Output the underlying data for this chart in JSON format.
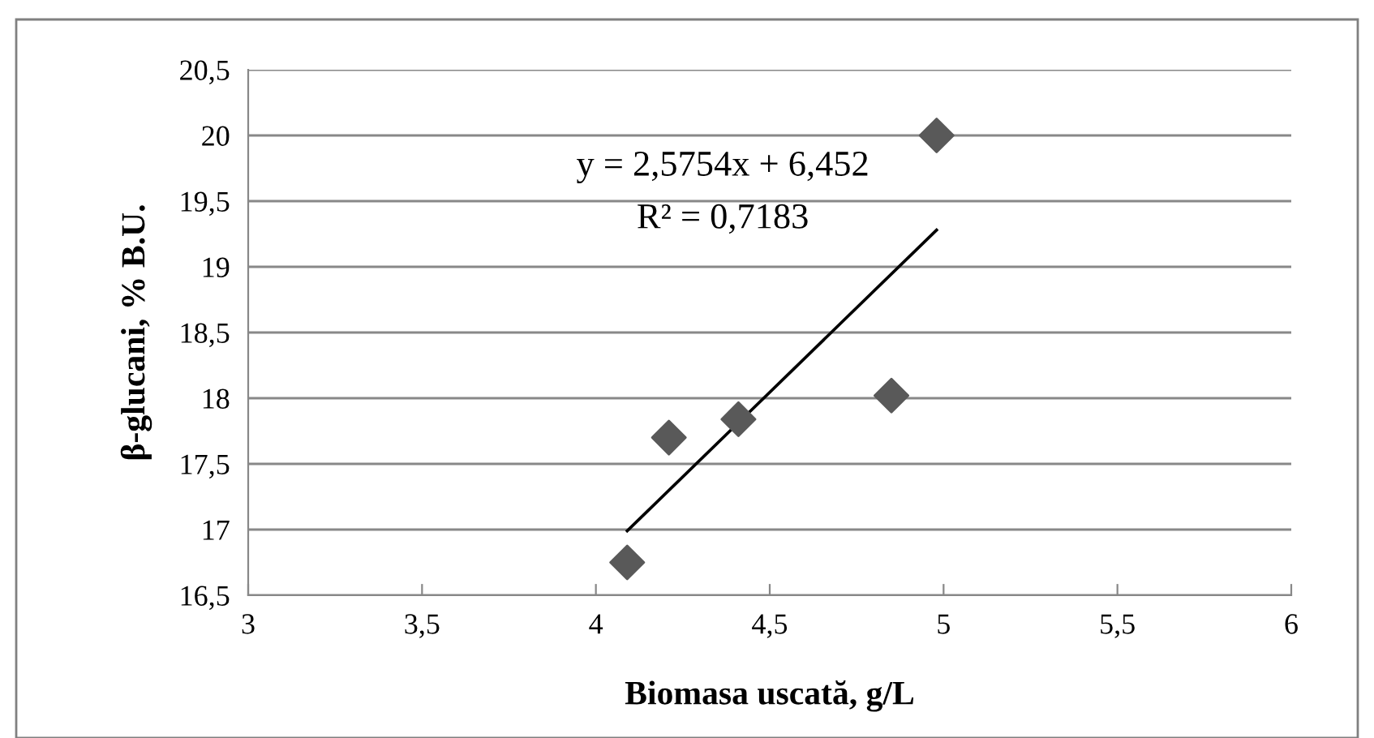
{
  "chart_data": {
    "type": "scatter",
    "xlabel": "Biomasa uscată, g/L",
    "ylabel": "β-glucani, % B.U.",
    "xlim": [
      3,
      6
    ],
    "ylim": [
      16.5,
      20.5
    ],
    "xticks": [
      3,
      {
        "value": 3.5,
        "label": "3,5"
      },
      4,
      {
        "value": 4.5,
        "label": "4,5"
      },
      5,
      {
        "value": 5.5,
        "label": "5,5"
      },
      6
    ],
    "yticks": [
      {
        "value": 16.5,
        "label": "16,5"
      },
      17,
      {
        "value": 17.5,
        "label": "17,5"
      },
      18,
      {
        "value": 18.5,
        "label": "18,5"
      },
      19,
      {
        "value": 19.5,
        "label": "19,5"
      },
      20,
      {
        "value": 20.5,
        "label": "20,5"
      }
    ],
    "grid": "y",
    "legend": false,
    "marker": "diamond",
    "series": [
      {
        "color": "#595959",
        "x": [
          4.09,
          4.21,
          4.41,
          4.85,
          4.98
        ],
        "values": [
          16.75,
          17.7,
          17.84,
          18.02,
          20.0
        ]
      },
      {
        "type": "line",
        "color": "#000000",
        "marker": "none",
        "x": [
          4.09,
          4.98
        ],
        "values": [
          16.99,
          19.28
        ]
      }
    ],
    "annotations": [
      "y = 2,5754x + 6,452",
      "R² = 0,7183"
    ]
  }
}
